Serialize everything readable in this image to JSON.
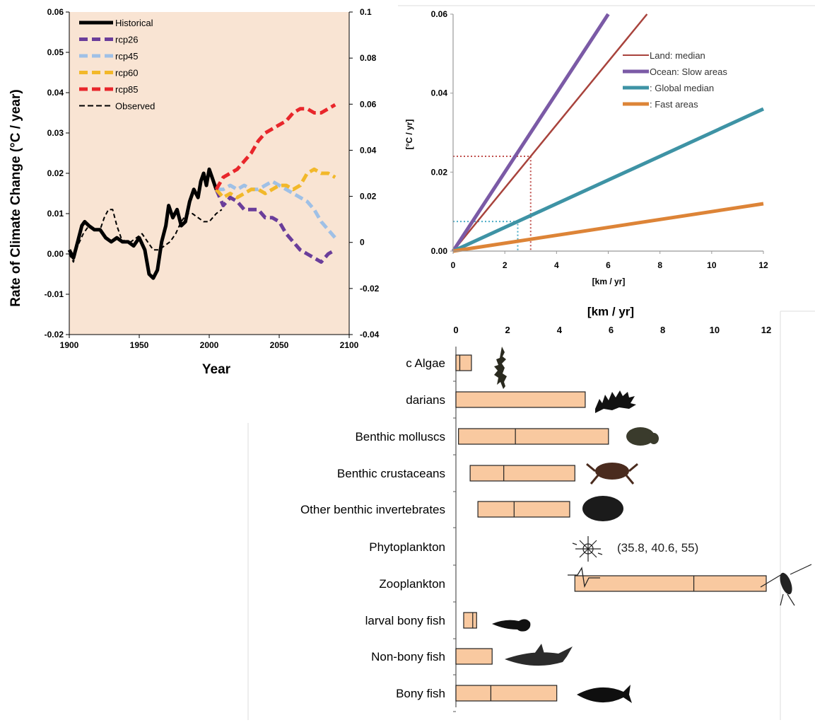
{
  "chart_data": [
    {
      "type": "line",
      "xlabel": "Year",
      "ylabel": "Rate of Climate Change (°C / year)",
      "xlim": [
        1900,
        2100
      ],
      "x_ticks": [
        "1900",
        "1950",
        "2000",
        "2050",
        "2100"
      ],
      "ylim": [
        -0.02,
        0.06
      ],
      "y_ticks": [
        "0.06",
        "0.05",
        "0.04",
        "0.03",
        "0.02",
        "0.01",
        "0.00",
        "-0.01",
        "-0.02"
      ],
      "y2lim": [
        -0.04,
        0.1
      ],
      "y2_ticks": [
        "0.1",
        "0.08",
        "0.06",
        "0.04",
        "0.02",
        "0",
        "-0.02",
        "-0.04"
      ],
      "background_color": "#f9e4d3",
      "legend_position": "top-left",
      "series": [
        {
          "name": "Historical",
          "color": "#000000",
          "style": "solid",
          "axis": "left",
          "x": [
            1900,
            1903,
            1906,
            1909,
            1911,
            1914,
            1918,
            1922,
            1926,
            1930,
            1934,
            1938,
            1942,
            1946,
            1950,
            1954,
            1957,
            1960,
            1963,
            1966,
            1969,
            1971,
            1974,
            1977,
            1980,
            1983,
            1986,
            1989,
            1992,
            1994,
            1996,
            1998,
            2000,
            2002,
            2005
          ],
          "y": [
            0.001,
            -0.001,
            0.003,
            0.007,
            0.008,
            0.007,
            0.006,
            0.006,
            0.004,
            0.003,
            0.004,
            0.003,
            0.003,
            0.002,
            0.004,
            0.001,
            -0.005,
            -0.006,
            -0.004,
            0.003,
            0.007,
            0.012,
            0.009,
            0.011,
            0.007,
            0.008,
            0.013,
            0.016,
            0.014,
            0.018,
            0.02,
            0.017,
            0.021,
            0.019,
            0.016
          ]
        },
        {
          "name": "rcp26",
          "color": "#6a3d9a",
          "style": "dashed",
          "axis": "left",
          "x": [
            2005,
            2010,
            2015,
            2020,
            2025,
            2030,
            2035,
            2040,
            2045,
            2050,
            2055,
            2060,
            2065,
            2070,
            2075,
            2080,
            2085,
            2090
          ],
          "y": [
            0.016,
            0.012,
            0.014,
            0.013,
            0.011,
            0.011,
            0.011,
            0.009,
            0.009,
            0.008,
            0.005,
            0.003,
            0.001,
            0.0,
            -0.001,
            -0.002,
            0.0,
            0.001
          ]
        },
        {
          "name": "rcp45",
          "color": "#9fc0e6",
          "style": "dashed",
          "axis": "left",
          "x": [
            2005,
            2010,
            2015,
            2020,
            2025,
            2030,
            2035,
            2040,
            2045,
            2050,
            2055,
            2060,
            2065,
            2070,
            2075,
            2080,
            2085,
            2090
          ],
          "y": [
            0.016,
            0.016,
            0.017,
            0.016,
            0.017,
            0.016,
            0.016,
            0.017,
            0.018,
            0.017,
            0.016,
            0.015,
            0.014,
            0.013,
            0.011,
            0.008,
            0.006,
            0.004
          ]
        },
        {
          "name": "rcp60",
          "color": "#f2b82a",
          "style": "dashed",
          "axis": "left",
          "x": [
            2005,
            2010,
            2015,
            2020,
            2025,
            2030,
            2035,
            2040,
            2045,
            2050,
            2055,
            2060,
            2065,
            2070,
            2075,
            2080,
            2085,
            2090
          ],
          "y": [
            0.016,
            0.014,
            0.015,
            0.014,
            0.015,
            0.016,
            0.016,
            0.015,
            0.016,
            0.017,
            0.017,
            0.016,
            0.017,
            0.02,
            0.021,
            0.02,
            0.02,
            0.019
          ]
        },
        {
          "name": "rcp85",
          "color": "#e8262b",
          "style": "dashed",
          "axis": "left",
          "x": [
            2005,
            2010,
            2015,
            2020,
            2025,
            2030,
            2035,
            2040,
            2045,
            2050,
            2055,
            2060,
            2065,
            2070,
            2075,
            2080,
            2085,
            2090
          ],
          "y": [
            0.016,
            0.019,
            0.02,
            0.021,
            0.023,
            0.025,
            0.028,
            0.03,
            0.031,
            0.032,
            0.033,
            0.035,
            0.036,
            0.036,
            0.035,
            0.035,
            0.036,
            0.037
          ]
        },
        {
          "name": "Observed",
          "color": "#000000",
          "style": "dashed-thin",
          "axis": "left",
          "x": [
            1900,
            1903,
            1906,
            1910,
            1914,
            1918,
            1922,
            1925,
            1928,
            1931,
            1934,
            1937,
            1940,
            1944,
            1948,
            1952,
            1956,
            1960,
            1964,
            1968,
            1972,
            1976,
            1980,
            1984,
            1988,
            1992,
            1996,
            2000,
            2005,
            2009
          ],
          "y": [
            0.0,
            -0.002,
            0.002,
            0.005,
            0.007,
            0.006,
            0.006,
            0.009,
            0.011,
            0.011,
            0.007,
            0.004,
            0.003,
            0.003,
            0.004,
            0.005,
            0.003,
            0.001,
            0.001,
            0.002,
            0.003,
            0.005,
            0.008,
            0.01,
            0.01,
            0.009,
            0.008,
            0.008,
            0.01,
            0.011
          ]
        }
      ]
    },
    {
      "type": "line",
      "xlabel": "[km / yr]",
      "ylabel": "[°C / yr]",
      "xlim": [
        0,
        12
      ],
      "x_ticks": [
        "0",
        "2",
        "4",
        "6",
        "8",
        "10",
        "12"
      ],
      "ylim": [
        0,
        0.06
      ],
      "y_ticks": [
        "0.06",
        "0.04",
        "0.02",
        "0.00"
      ],
      "legend_position": "top-right",
      "series": [
        {
          "name": "Land: median",
          "color": "#a8433c",
          "slope": 0.008
        },
        {
          "name": "Ocean: Slow areas",
          "color": "#7b5aa6",
          "slope": 0.01
        },
        {
          "name": ": Global median",
          "color": "#3e93a5",
          "slope": 0.003
        },
        {
          "name": ": Fast areas",
          "color": "#dd8437",
          "slope": 0.001
        }
      ],
      "reference_lines": [
        {
          "color": "#c0504d",
          "x": 3.0,
          "y": 0.024
        },
        {
          "color": "#4bacc6",
          "x": 2.5,
          "y": 0.0075
        }
      ]
    },
    {
      "type": "bar",
      "orientation": "horizontal",
      "xlabel": "[km / yr]",
      "xlim": [
        0,
        12
      ],
      "x_ticks": [
        "0",
        "2",
        "4",
        "6",
        "8",
        "10",
        "12"
      ],
      "bar_color": "#f9c9a0",
      "categories": [
        "c Algae",
        "darians",
        "Benthic molluscs",
        "Benthic crustaceans",
        "Other benthic invertebrates",
        "Phytoplankton",
        "Zooplankton",
        "larval bony fish",
        "Non-bony fish",
        "Bony fish"
      ],
      "ranges": [
        {
          "low": 0.0,
          "median": 0.15,
          "high": 0.6
        },
        {
          "low": 0.0,
          "median": null,
          "high": 5.0
        },
        {
          "low": 0.1,
          "median": 2.3,
          "high": 5.9
        },
        {
          "low": 0.55,
          "median": 1.85,
          "high": 4.6
        },
        {
          "low": 0.85,
          "median": 2.25,
          "high": 4.4
        },
        null,
        {
          "low": 4.6,
          "median": 9.2,
          "high": 12.0
        },
        {
          "low": 0.3,
          "median": 0.65,
          "high": 0.8
        },
        {
          "low": 0.0,
          "median": null,
          "high": 1.4
        },
        {
          "low": 0.0,
          "median": 1.35,
          "high": 3.9
        }
      ],
      "annotations": [
        "(35.8, 40.6, 55)"
      ]
    }
  ]
}
